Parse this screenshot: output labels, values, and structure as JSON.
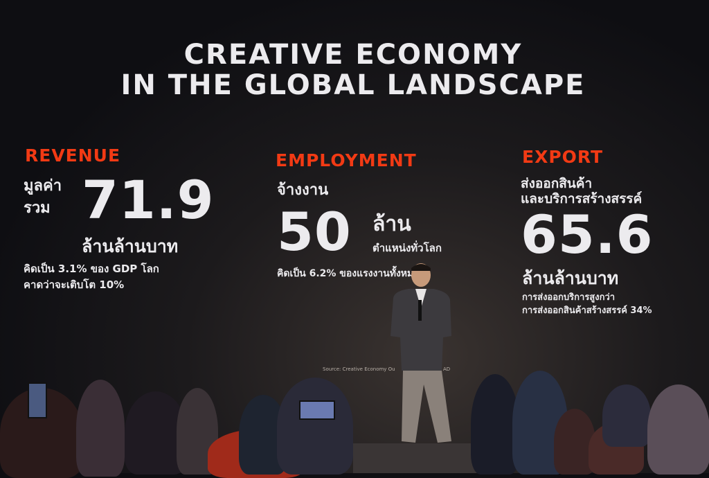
{
  "slide": {
    "title_line1": "CREATIVE ECONOMY",
    "title_line2": "IN THE GLOBAL LANDSCAPE",
    "revenue": {
      "heading": "REVENUE",
      "label_line1": "มูลค่า",
      "label_line2": "รวม",
      "value": "71.9",
      "unit": "ล้านล้านบาท",
      "note_line1": "คิดเป็น 3.1% ของ GDP โลก",
      "note_line2": "คาดว่าจะเติบโต 10%"
    },
    "employment": {
      "heading": "EMPLOYMENT",
      "label": "จ้างงาน",
      "value": "50",
      "unit": "ล้าน",
      "unit_sub": "ตำแหน่งทั่วโลก",
      "note": "คิดเป็น 6.2% ของแรงงานทั้งหมด"
    },
    "export": {
      "heading": "EXPORT",
      "label_line1": "ส่งออกสินค้า",
      "label_line2": "และบริการสร้างสรรค์",
      "value": "65.6",
      "unit": "ล้านล้านบาท",
      "note_line1": "การส่งออกบริการสูงกว่า",
      "note_line2": "การส่งออกสินค้าสร้างสรรค์ 34%"
    },
    "source": "Source:  Creative Economy Ou",
    "source_tail": "AD",
    "colors": {
      "accent": "#f23a14",
      "text": "#ecebee",
      "background": "#121216"
    }
  }
}
